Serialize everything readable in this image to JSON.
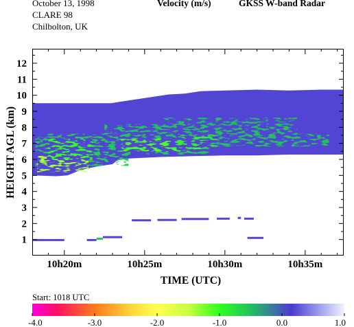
{
  "header": {
    "date": "October  13, 1998",
    "campaign": "CLARE 98",
    "location": "Chilbolton, UK",
    "title": "Velocity (m/s)",
    "instrument": "GKSS  W-band Radar"
  },
  "footer": {
    "start_label": "Start: 1018 UTC"
  },
  "colorbar": {
    "ticks": [
      "-4.0",
      "-3.0",
      "-2.0",
      "-1.0",
      "0.0",
      "1.0"
    ],
    "range": [
      -4.0,
      1.0
    ],
    "stops": [
      {
        "v": -4.0,
        "color": "#ff00e0"
      },
      {
        "v": -3.6,
        "color": "#ff1060"
      },
      {
        "v": -3.0,
        "color": "#ff7a20"
      },
      {
        "v": -2.4,
        "color": "#ffd83a"
      },
      {
        "v": -2.0,
        "color": "#ffff50"
      },
      {
        "v": -1.5,
        "color": "#c8ff40"
      },
      {
        "v": -1.0,
        "color": "#30ff20"
      },
      {
        "v": -0.5,
        "color": "#22c060"
      },
      {
        "v": -0.15,
        "color": "#3a7aa0"
      },
      {
        "v": 0.15,
        "color": "#4a3ad0"
      },
      {
        "v": 0.5,
        "color": "#8a8ae8"
      },
      {
        "v": 1.0,
        "color": "#f2f2ff"
      }
    ]
  },
  "chart_data": {
    "type": "heatmap",
    "title": "Velocity (m/s)",
    "xlabel": "TIME (UTC)",
    "ylabel": "HEIGHT AGL (km)",
    "x_unit": "minutes after 10h18m",
    "xlim": [
      0,
      19.4
    ],
    "ylim": [
      0.0,
      12.9
    ],
    "x_ticks": [
      {
        "label": "10h20m",
        "value": 2
      },
      {
        "label": "10h25m",
        "value": 7
      },
      {
        "label": "10h30m",
        "value": 12
      },
      {
        "label": "10h35m",
        "value": 17
      }
    ],
    "y_ticks": [
      {
        "label": "1",
        "value": 1
      },
      {
        "label": "2",
        "value": 2
      },
      {
        "label": "3",
        "value": 3
      },
      {
        "label": "4",
        "value": 4
      },
      {
        "label": "5",
        "value": 5
      },
      {
        "label": "6",
        "value": 6
      },
      {
        "label": "7",
        "value": 7
      },
      {
        "label": "8",
        "value": 8
      },
      {
        "label": "9",
        "value": 9
      },
      {
        "label": "10",
        "value": 10
      },
      {
        "label": "11",
        "value": 11
      },
      {
        "label": "12",
        "value": 12
      }
    ],
    "cloud_layer": {
      "velocity": 0.2,
      "top_profile": [
        [
          0,
          9.5
        ],
        [
          4.9,
          9.5
        ],
        [
          5.5,
          9.6
        ],
        [
          6.5,
          9.75
        ],
        [
          7.5,
          9.9
        ],
        [
          8.5,
          10.05
        ],
        [
          9.5,
          10.1
        ],
        [
          10.5,
          10.25
        ],
        [
          12,
          10.3
        ],
        [
          14,
          10.35
        ],
        [
          16,
          10.3
        ],
        [
          18,
          10.35
        ],
        [
          19.4,
          10.35
        ]
      ],
      "base_profile": [
        [
          0,
          5.0
        ],
        [
          1.5,
          4.95
        ],
        [
          2.2,
          5.0
        ],
        [
          2.8,
          5.25
        ],
        [
          3.3,
          5.4
        ],
        [
          4.0,
          5.55
        ],
        [
          5.0,
          5.7
        ],
        [
          5.3,
          5.95
        ],
        [
          6.0,
          6.05
        ],
        [
          8,
          6.15
        ],
        [
          10,
          6.2
        ],
        [
          12,
          6.25
        ],
        [
          14,
          6.25
        ],
        [
          16,
          6.3
        ],
        [
          18,
          6.3
        ],
        [
          19.4,
          6.3
        ]
      ]
    },
    "regions": [
      {
        "x": [
          0.2,
          6.0
        ],
        "y": [
          5.6,
          7.6
        ],
        "velocity": -0.6
      },
      {
        "x": [
          4.5,
          11.0
        ],
        "y": [
          6.3,
          8.2
        ],
        "velocity": -0.55
      },
      {
        "x": [
          8.0,
          16.5
        ],
        "y": [
          7.0,
          8.6
        ],
        "velocity": -0.5
      },
      {
        "x": [
          10.5,
          18.5
        ],
        "y": [
          6.8,
          7.6
        ],
        "velocity": -0.5
      },
      {
        "x": [
          0.3,
          3.5
        ],
        "y": [
          5.2,
          6.3
        ],
        "velocity": -1.4
      },
      {
        "x": [
          1.0,
          3.8
        ],
        "y": [
          6.0,
          7.3
        ],
        "velocity": -1.0
      },
      {
        "x": [
          5.5,
          10.5
        ],
        "y": [
          6.5,
          7.3
        ],
        "velocity": -1.1
      },
      {
        "x": [
          9.0,
          11.5
        ],
        "y": [
          6.7,
          7.5
        ],
        "velocity": -0.9
      }
    ],
    "low_echoes": [
      {
        "x": [
          0.0,
          2.0
        ],
        "y": 0.97,
        "velocity": 0.2
      },
      {
        "x": [
          3.4,
          4.0
        ],
        "y": 0.97,
        "velocity": 0.2
      },
      {
        "x": [
          4.0,
          4.4
        ],
        "y": 1.05,
        "velocity": -0.6
      },
      {
        "x": [
          4.4,
          5.6
        ],
        "y": 1.15,
        "velocity": 0.2
      },
      {
        "x": [
          6.2,
          7.4
        ],
        "y": 2.2,
        "velocity": 0.2
      },
      {
        "x": [
          7.8,
          9.0
        ],
        "y": 2.22,
        "velocity": 0.2
      },
      {
        "x": [
          9.3,
          11.0
        ],
        "y": 2.28,
        "velocity": 0.2
      },
      {
        "x": [
          11.5,
          12.3
        ],
        "y": 2.3,
        "velocity": 0.2
      },
      {
        "x": [
          12.8,
          13.0
        ],
        "y": 2.35,
        "velocity": 0.2
      },
      {
        "x": [
          13.2,
          13.8
        ],
        "y": 2.3,
        "velocity": 0.2
      },
      {
        "x": [
          13.4,
          14.4
        ],
        "y": 1.1,
        "velocity": 0.2
      }
    ]
  }
}
